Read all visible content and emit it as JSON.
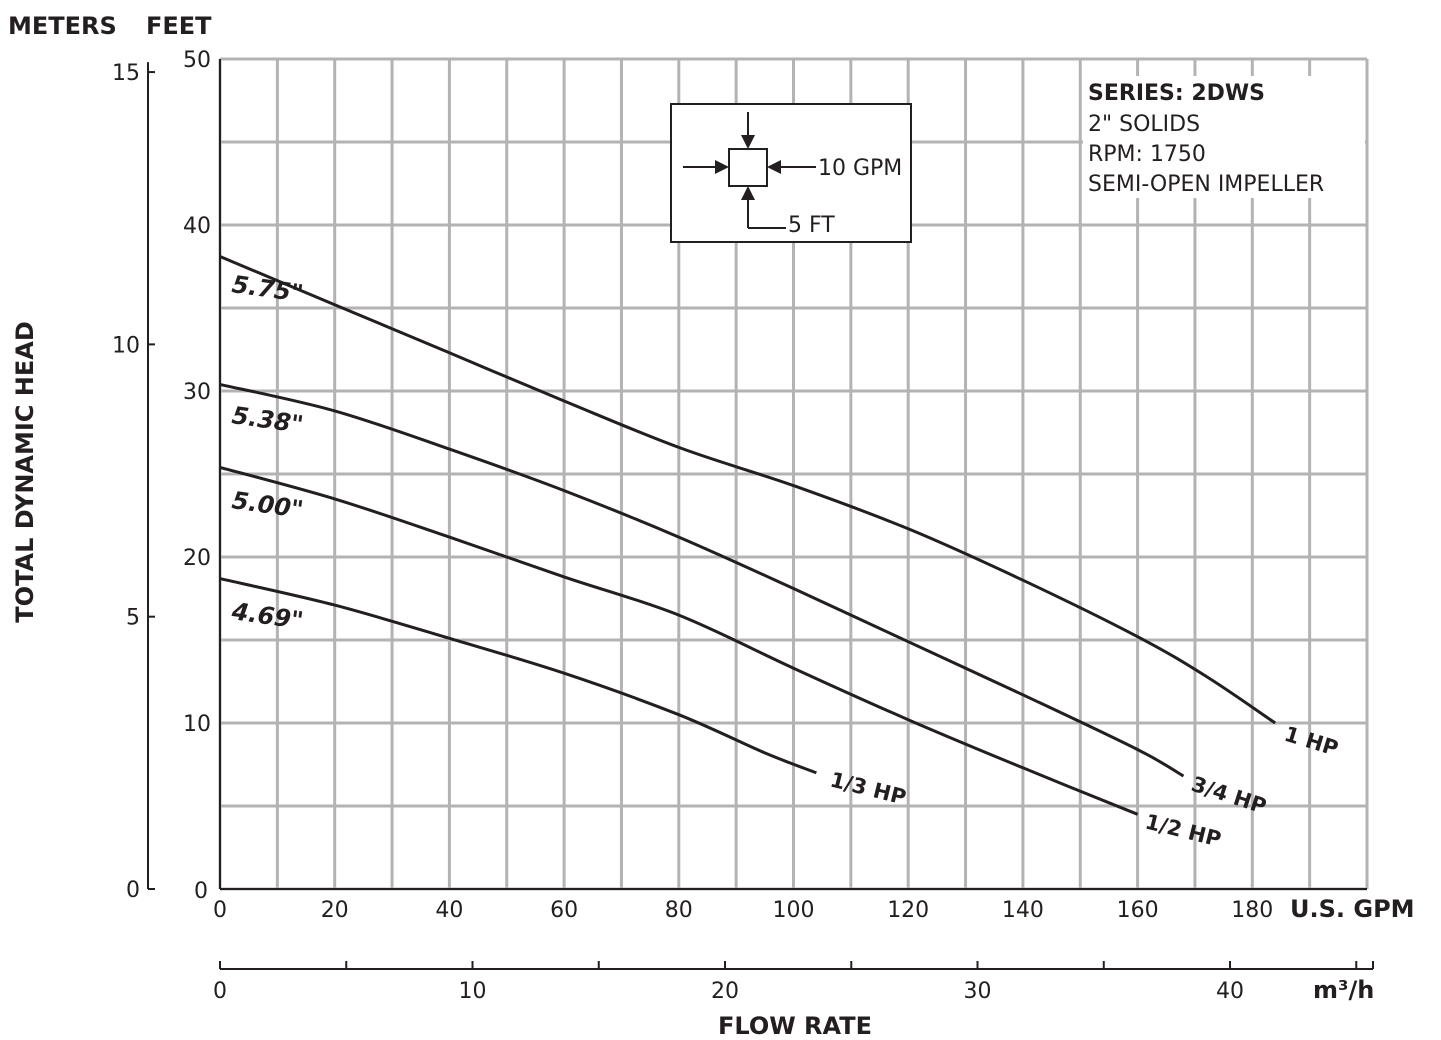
{
  "chart_data": {
    "type": "line",
    "x_unit_label": "U.S. GPM",
    "x_ticks": [
      0,
      20,
      40,
      60,
      80,
      100,
      120,
      140,
      160,
      180
    ],
    "x_range": [
      0,
      200
    ],
    "y_unit_label": "FEET",
    "y_ticks": [
      10,
      20,
      30,
      40,
      50
    ],
    "y_range": [
      0,
      50
    ],
    "y2_unit_label": "METERS",
    "y2_ticks": [
      0,
      5,
      10,
      15
    ],
    "x2_unit_label": "m³/h",
    "x2_ticks": [
      0,
      10,
      20,
      30,
      40
    ],
    "ylabel": "TOTAL DYNAMIC HEAD",
    "xlabel": "FLOW RATE",
    "grid": true,
    "info": {
      "series_line": "SERIES: 2DWS",
      "solids": "2\" SOLIDS",
      "rpm": "RPM: 1750",
      "impeller": "SEMI-OPEN IMPELLER"
    },
    "scale_box": {
      "flow_label": "10 GPM",
      "head_label": "5 FT"
    },
    "series": [
      {
        "name": "5.75\"",
        "hp": "1 HP",
        "points": [
          [
            0,
            38.1
          ],
          [
            20,
            35.2
          ],
          [
            40,
            32.3
          ],
          [
            60,
            29.4
          ],
          [
            80,
            26.6
          ],
          [
            100,
            24.3
          ],
          [
            120,
            21.7
          ],
          [
            140,
            18.6
          ],
          [
            160,
            15.2
          ],
          [
            172,
            12.8
          ],
          [
            184,
            10.0
          ]
        ]
      },
      {
        "name": "5.38\"",
        "hp": "3/4 HP",
        "points": [
          [
            0,
            30.4
          ],
          [
            20,
            28.8
          ],
          [
            40,
            26.5
          ],
          [
            60,
            24.0
          ],
          [
            80,
            21.2
          ],
          [
            100,
            18.1
          ],
          [
            120,
            14.9
          ],
          [
            140,
            11.7
          ],
          [
            160,
            8.4
          ],
          [
            168,
            6.8
          ]
        ]
      },
      {
        "name": "5.00\"",
        "hp": "1/2 HP",
        "points": [
          [
            0,
            25.4
          ],
          [
            20,
            23.5
          ],
          [
            40,
            21.2
          ],
          [
            60,
            18.8
          ],
          [
            80,
            16.5
          ],
          [
            100,
            13.3
          ],
          [
            120,
            10.2
          ],
          [
            140,
            7.3
          ],
          [
            160,
            4.5
          ]
        ]
      },
      {
        "name": "4.69\"",
        "hp": "1/3 HP",
        "points": [
          [
            0,
            18.7
          ],
          [
            20,
            17.1
          ],
          [
            40,
            15.1
          ],
          [
            60,
            13.0
          ],
          [
            80,
            10.5
          ],
          [
            95,
            8.2
          ],
          [
            104,
            7.0
          ]
        ]
      }
    ]
  }
}
